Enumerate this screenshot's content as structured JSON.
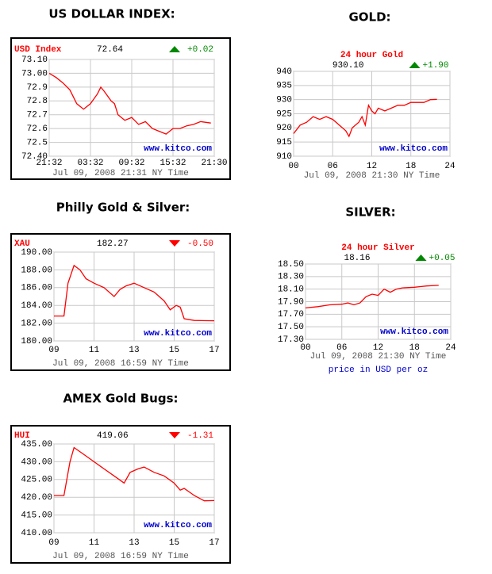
{
  "chart_data": [
    {
      "type": "line",
      "heading": "US DOLLAR INDEX:",
      "title": "USD Index",
      "last": 72.64,
      "change": {
        "value": 0.02,
        "label": "+0.02"
      },
      "watermark": "www.kitco.com",
      "footer": "Jul 09, 2008 21:31 NY Time",
      "color": "#ff0000",
      "grid": true,
      "xlim": [
        0,
        24
      ],
      "ylim": [
        72.4,
        73.1
      ],
      "xticks": [
        {
          "value": 0,
          "label": "21:32"
        },
        {
          "value": 6,
          "label": "03:32"
        },
        {
          "value": 12,
          "label": "09:32"
        },
        {
          "value": 18,
          "label": "15:32"
        },
        {
          "value": 24,
          "label": "21:30"
        }
      ],
      "yticks": [
        {
          "value": 72.4,
          "label": "72.40"
        },
        72.5,
        72.6,
        72.7,
        72.8,
        72.9,
        {
          "value": 73,
          "label": "73.00"
        },
        {
          "value": 73.1,
          "label": "73.10"
        }
      ],
      "x": [
        0,
        1,
        2,
        3,
        4,
        5,
        6,
        7,
        7.5,
        8,
        9,
        9.5,
        10,
        11,
        12,
        13,
        14,
        15,
        16,
        17,
        18,
        19,
        20,
        21,
        22,
        23.5
      ],
      "values": [
        73.0,
        72.97,
        72.93,
        72.88,
        72.78,
        72.74,
        72.78,
        72.85,
        72.9,
        72.87,
        72.8,
        72.78,
        72.7,
        72.66,
        72.68,
        72.63,
        72.65,
        72.6,
        72.58,
        72.56,
        72.6,
        72.6,
        72.62,
        72.63,
        72.65,
        72.64
      ]
    },
    {
      "type": "line",
      "heading": "GOLD:",
      "title": "24 hour Gold",
      "last": {
        "value": 930.1,
        "label": "930.10"
      },
      "change": {
        "value": 1.9,
        "label": "+1.90"
      },
      "watermark": "www.kitco.com",
      "footer": "Jul 09, 2008 21:30 NY Time",
      "color": "#ff0000",
      "grid": true,
      "xlim": [
        0,
        24
      ],
      "ylim": [
        910,
        940
      ],
      "xticks": [
        {
          "value": 0,
          "label": "00"
        },
        {
          "value": 6,
          "label": "06"
        },
        12,
        18,
        24
      ],
      "yticks": [
        910,
        915,
        920,
        925,
        930,
        935,
        940
      ],
      "x": [
        0,
        1,
        2,
        3,
        4,
        5,
        6,
        7,
        8,
        8.5,
        9,
        10,
        10.5,
        11,
        11.5,
        12,
        12.5,
        13,
        14,
        15,
        16,
        17,
        18,
        19,
        20,
        21,
        22
      ],
      "values": [
        918,
        921,
        922,
        924,
        923,
        924,
        923,
        921,
        919,
        917,
        920,
        922,
        924,
        921,
        928,
        926,
        925,
        927,
        926,
        927,
        928,
        928,
        929,
        929,
        929,
        930,
        930.1
      ]
    },
    {
      "type": "line",
      "heading": "Philly Gold & Silver:",
      "title": "XAU",
      "last": 182.27,
      "change": {
        "value": -0.5,
        "label": "-0.50"
      },
      "watermark": "www.kitco.com",
      "footer": "Jul 09, 2008 16:59 NY Time",
      "color": "#ff0000",
      "grid": true,
      "xlim": [
        9,
        17
      ],
      "ylim": [
        180,
        190
      ],
      "xticks": [
        {
          "value": 9,
          "label": "09"
        },
        11,
        13,
        15,
        17
      ],
      "yticks": [
        {
          "value": 180,
          "label": "180.00"
        },
        {
          "value": 182,
          "label": "182.00"
        },
        {
          "value": 184,
          "label": "184.00"
        },
        {
          "value": 186,
          "label": "186.00"
        },
        {
          "value": 188,
          "label": "188.00"
        },
        {
          "value": 190,
          "label": "190.00"
        }
      ],
      "x": [
        9,
        9.5,
        9.7,
        10,
        10.3,
        10.6,
        11,
        11.5,
        12,
        12.3,
        12.6,
        13,
        13.5,
        14,
        14.5,
        14.8,
        15.1,
        15.3,
        15.5,
        16,
        17
      ],
      "values": [
        182.8,
        182.8,
        186.5,
        188.5,
        188,
        187,
        186.5,
        186,
        185,
        185.8,
        186.2,
        186.5,
        186,
        185.5,
        184.5,
        183.5,
        184,
        183.8,
        182.5,
        182.3,
        182.27
      ]
    },
    {
      "type": "line",
      "heading": "SILVER:",
      "title": "24 hour Silver",
      "last": 18.16,
      "change": {
        "value": 0.05,
        "label": "+0.05"
      },
      "watermark": "www.kitco.com",
      "footer": "Jul 09, 2008 21:30 NY Time",
      "note": "price in USD per oz",
      "color": "#ff0000",
      "grid": true,
      "xlim": [
        0,
        24
      ],
      "ylim": [
        17.3,
        18.5
      ],
      "xticks": [
        {
          "value": 0,
          "label": "00"
        },
        {
          "value": 6,
          "label": "06"
        },
        12,
        18,
        24
      ],
      "yticks": [
        {
          "value": 17.3,
          "label": "17.30"
        },
        {
          "value": 17.5,
          "label": "17.50"
        },
        {
          "value": 17.7,
          "label": "17.70"
        },
        {
          "value": 17.9,
          "label": "17.90"
        },
        {
          "value": 18.1,
          "label": "18.10"
        },
        {
          "value": 18.3,
          "label": "18.30"
        },
        {
          "value": 18.5,
          "label": "18.50"
        }
      ],
      "x": [
        0,
        2,
        4,
        6,
        7,
        8,
        9,
        10,
        11,
        12,
        13,
        14,
        15,
        16,
        18,
        19,
        20,
        22
      ],
      "values": [
        17.8,
        17.82,
        17.85,
        17.86,
        17.88,
        17.85,
        17.88,
        17.98,
        18.02,
        18.0,
        18.1,
        18.05,
        18.1,
        18.12,
        18.13,
        18.14,
        18.15,
        18.16
      ]
    },
    {
      "type": "line",
      "heading": "AMEX Gold Bugs:",
      "title": "HUI",
      "last": 419.06,
      "change": -1.31,
      "watermark": "www.kitco.com",
      "footer": "Jul 09, 2008 16:59 NY Time",
      "color": "#ff0000",
      "grid": true,
      "xlim": [
        9,
        17
      ],
      "ylim": [
        410,
        435
      ],
      "xticks": [
        {
          "value": 9,
          "label": "09"
        },
        11,
        13,
        15,
        17
      ],
      "yticks": [
        {
          "value": 410,
          "label": "410.00"
        },
        {
          "value": 415,
          "label": "415.00"
        },
        {
          "value": 420,
          "label": "420.00"
        },
        {
          "value": 425,
          "label": "425.00"
        },
        {
          "value": 430,
          "label": "430.00"
        },
        {
          "value": 435,
          "label": "435.00"
        }
      ],
      "x": [
        9,
        9.5,
        9.8,
        10,
        10.5,
        11,
        11.5,
        12,
        12.5,
        12.8,
        13.2,
        13.5,
        14,
        14.5,
        15,
        15.3,
        15.5,
        16,
        16.5,
        17
      ],
      "values": [
        420.5,
        420.5,
        430,
        434,
        432,
        430,
        428,
        426,
        424,
        427,
        428,
        428.5,
        427,
        426,
        424,
        422,
        422.5,
        420.5,
        419,
        419.06
      ]
    }
  ]
}
